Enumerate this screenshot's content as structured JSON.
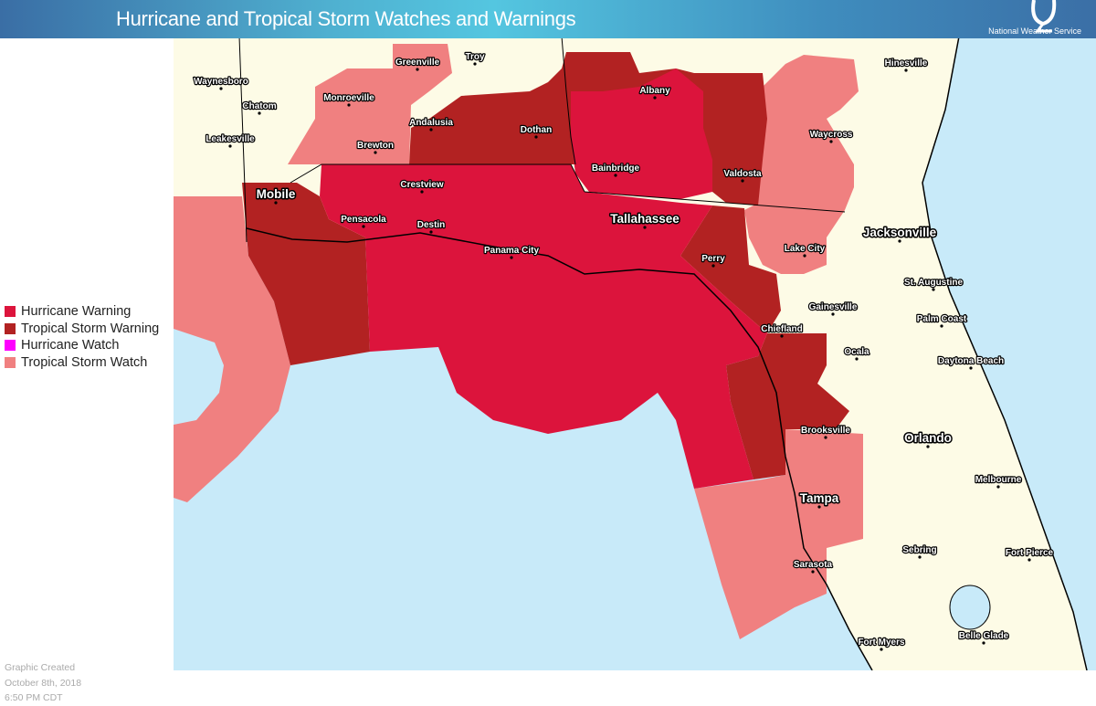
{
  "header": {
    "title": "Hurricane and Tropical Storm Watches and Warnings",
    "logo_text": "National Weather Service"
  },
  "legend": [
    {
      "label": "Hurricane Warning",
      "color": "#dc143c"
    },
    {
      "label": "Tropical Storm Warning",
      "color": "#b22222"
    },
    {
      "label": "Hurricane Watch",
      "color": "#ff00ff"
    },
    {
      "label": "Tropical Storm Watch",
      "color": "#f08080"
    }
  ],
  "footer": {
    "line1": "Graphic Created",
    "line2": "October 8th, 2018",
    "line3": "6:50 PM CDT"
  },
  "map_colors": {
    "water": "#c8eaf9",
    "land": "#fdfbe6"
  },
  "cities": [
    "Greenville",
    "Troy",
    "Waynesboro",
    "Chatom",
    "Monroeville",
    "Leakesville",
    "Andalusia",
    "Dothan",
    "Albany",
    "Brewton",
    "Hinesville",
    "Waycross",
    "Bainbridge",
    "Valdosta",
    "Crestview",
    "Mobile",
    "Pensacola",
    "Destin",
    "Tallahassee",
    "Jacksonville",
    "Panama City",
    "Lake City",
    "Perry",
    "St. Augustine",
    "Gainesville",
    "Palm Coast",
    "Chiefland",
    "Ocala",
    "Daytona Beach",
    "Brooksville",
    "Orlando",
    "Melbourne",
    "Tampa",
    "Sebring",
    "Fort Pierce",
    "Sarasota",
    "Belle Glade",
    "Fort Myers"
  ]
}
